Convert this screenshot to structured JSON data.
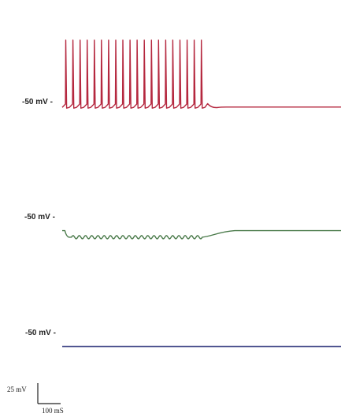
{
  "chart_data": {
    "type": "line",
    "time_units": "ms",
    "voltage_units": "mV",
    "x_range": [
      0,
      420
    ],
    "traces": [
      {
        "label": "-50 mV -",
        "color": "#b5283f",
        "baseline_mv": -50,
        "duration_ms": 420,
        "stim_end_ms": 215,
        "spike_count": 20,
        "spike_peak_mv": 28,
        "trough_mv": -54,
        "rest_mv": -50
      },
      {
        "label": "-50 mV -",
        "color": "#4a7a4a",
        "baseline_mv": -50,
        "duration_ms": 420,
        "start_mv": -64,
        "sag_mv": -72,
        "oscillation_count": 21,
        "oscillation_amplitude_mv": 2,
        "stim_end_ms": 215,
        "rest_mv": -64
      },
      {
        "label": "-50 mV -",
        "color": "#4a4f8c",
        "baseline_mv": -50,
        "duration_ms": 420,
        "rest_mv": -64
      }
    ],
    "scale_bar": {
      "voltage_label": "25 mV",
      "time_label": "100 mS",
      "voltage_mv": 25,
      "time_ms": 100
    }
  }
}
